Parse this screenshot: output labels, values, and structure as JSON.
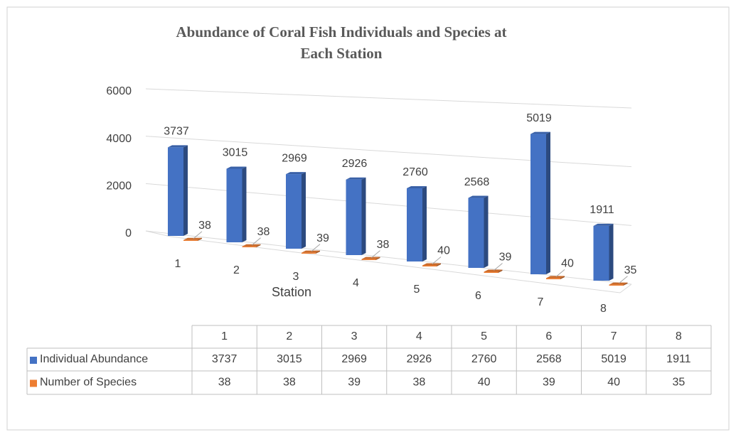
{
  "chart_data": {
    "type": "bar3d",
    "title": "Abundance of Coral Fish Individuals and Species at Each Station",
    "x_label": "Station",
    "categories": [
      "1",
      "2",
      "3",
      "4",
      "5",
      "6",
      "7",
      "8"
    ],
    "series": [
      {
        "name": "Individual Abundance",
        "color": "#4472c4",
        "values": [
          3737,
          3015,
          2969,
          2926,
          2760,
          2568,
          5019,
          1911
        ]
      },
      {
        "name": "Number of Species",
        "color": "#ed7d31",
        "values": [
          38,
          38,
          39,
          38,
          40,
          39,
          40,
          35
        ]
      }
    ],
    "ylim": [
      0,
      6000
    ],
    "yticks": [
      0,
      2000,
      4000,
      6000
    ],
    "grid": true,
    "data_table": true
  }
}
